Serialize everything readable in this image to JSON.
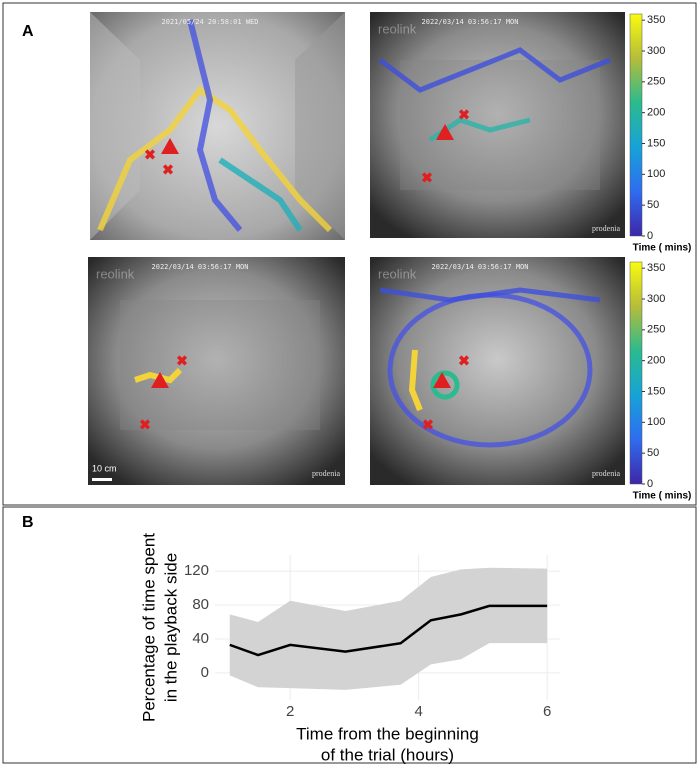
{
  "panel_a": {
    "label": "A",
    "images": [
      {
        "timestamp": "2021/05/24 20:58:01 WED"
      },
      {
        "timestamp": "2022/03/14 03:56:17 MON",
        "watermark": "reolink",
        "credit": "prodenia"
      },
      {
        "timestamp": "2022/03/14 03:56:17 MON",
        "watermark": "reolink",
        "credit": "prodenia",
        "scale": "10 cm"
      },
      {
        "timestamp": "2022/03/14 03:56:17 MON",
        "watermark": "reolink",
        "credit": "prodenia"
      }
    ],
    "colorbars": [
      {
        "clim": [
          0,
          360
        ],
        "ticks": [
          0,
          50,
          100,
          150,
          200,
          250,
          300,
          350
        ],
        "label": "Time ( mins)"
      },
      {
        "clim": [
          0,
          360
        ],
        "ticks": [
          0,
          50,
          100,
          150,
          200,
          250,
          300,
          350
        ],
        "label": "Time ( mins)"
      }
    ]
  },
  "panel_b": {
    "label": "B"
  },
  "chart_data": {
    "type": "line",
    "ylabel": [
      "Percentage of time spent",
      "in the playback side"
    ],
    "xlabel": [
      "Time from the beginning",
      "of the trial (hours)"
    ],
    "x": [
      1.06,
      1.5,
      2.0,
      2.86,
      3.72,
      4.19,
      4.66,
      5.1,
      6.0
    ],
    "series": [
      {
        "color": "#000000",
        "band_color": "#d3d3d3",
        "values": [
          33,
          21,
          33,
          25,
          35,
          62,
          69,
          79,
          79
        ],
        "upper": [
          69,
          60,
          85,
          73,
          85,
          113,
          122,
          124,
          123
        ],
        "lower": [
          -3,
          -17,
          -18,
          -20,
          -14,
          10,
          16,
          35,
          35
        ]
      }
    ],
    "xlim": [
      0.83,
      6.2
    ],
    "ylim": [
      -32,
      139
    ],
    "xticks": [
      2,
      4,
      6
    ],
    "yticks": [
      0,
      40,
      80,
      120
    ],
    "grid": true
  }
}
